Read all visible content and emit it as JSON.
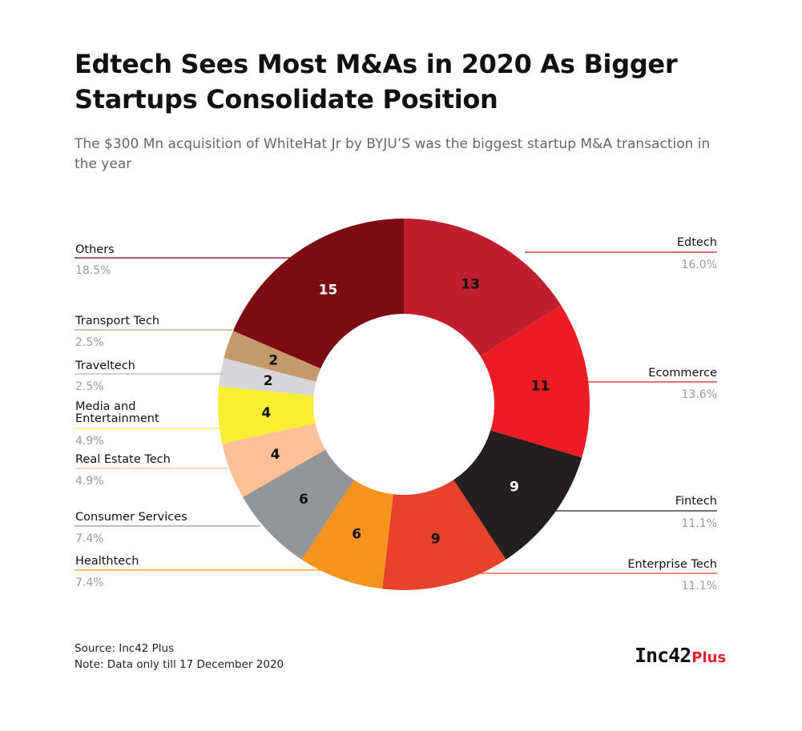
{
  "title": "Edtech Sees Most M&As in 2020 As Bigger Startups Consolidate Position",
  "subtitle": "The $300 Mn acquisition of WhiteHat Jr by BYJU’S was the biggest startup M&A transaction in the year",
  "footer": {
    "source": "Source: Inc42 Plus",
    "note": "Note: Data only till 17 December 2020"
  },
  "logo": {
    "inc": "Inc42",
    "plus": "Plus"
  },
  "chart_data": {
    "type": "pie",
    "donut": true,
    "slices": [
      {
        "label": "Edtech",
        "value": 13,
        "percent": "16.0%",
        "color": "#be1e2d",
        "value_color": "#111111"
      },
      {
        "label": "Ecommerce",
        "value": 11,
        "percent": "13.6%",
        "color": "#ed1c24",
        "value_color": "#111111"
      },
      {
        "label": "Fintech",
        "value": 9,
        "percent": "11.1%",
        "color": "#231f20",
        "value_color": "#ffffff"
      },
      {
        "label": "Enterprise Tech",
        "value": 9,
        "percent": "11.1%",
        "color": "#e8412c",
        "value_color": "#111111"
      },
      {
        "label": "Healthtech",
        "value": 6,
        "percent": "7.4%",
        "color": "#f7941d",
        "value_color": "#111111"
      },
      {
        "label": "Consumer Services",
        "value": 6,
        "percent": "7.4%",
        "color": "#939598",
        "value_color": "#111111"
      },
      {
        "label": "Real Estate Tech",
        "value": 4,
        "percent": "4.9%",
        "color": "#fdc097",
        "value_color": "#111111"
      },
      {
        "label": "Media and Entertainment",
        "value": 4,
        "percent": "4.9%",
        "color": "#f9ed32",
        "value_color": "#111111"
      },
      {
        "label": "Traveltech",
        "value": 2,
        "percent": "2.5%",
        "color": "#d7d7d9",
        "value_color": "#111111"
      },
      {
        "label": "Transport Tech",
        "value": 2,
        "percent": "2.5%",
        "color": "#c49a6c",
        "value_color": "#111111"
      },
      {
        "label": "Others",
        "value": 15,
        "percent": "18.5%",
        "color": "#7b0a12",
        "value_color": "#ffffff"
      }
    ]
  }
}
